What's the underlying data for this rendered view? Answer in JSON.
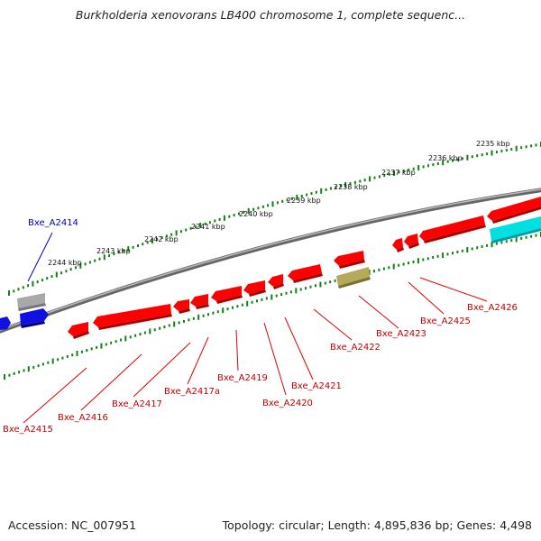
{
  "title": "Burkholderia xenovorans LB400 chromosome 1, complete sequenc...",
  "footer": {
    "accession": "Accession: NC_007951",
    "stats": "Topology: circular; Length: 4,895,836 bp; Genes: 4,498"
  },
  "scale_labels": [
    "2235 kbp",
    "2236 kbp",
    "2237 kbp",
    "2238 kbp",
    "2239 kbp",
    "2240 kbp",
    "2241 kbp",
    "2242 kbp",
    "2243 kbp",
    "2244 kbp"
  ],
  "genes": [
    {
      "label": "Bxe_A2414",
      "color": "#0000bb"
    },
    {
      "label": "Bxe_A2415",
      "color": "#c00000"
    },
    {
      "label": "Bxe_A2416",
      "color": "#c00000"
    },
    {
      "label": "Bxe_A2417",
      "color": "#c00000"
    },
    {
      "label": "Bxe_A2417a",
      "color": "#c00000"
    },
    {
      "label": "Bxe_A2419",
      "color": "#c00000"
    },
    {
      "label": "Bxe_A2420",
      "color": "#c00000"
    },
    {
      "label": "Bxe_A2421",
      "color": "#c00000"
    },
    {
      "label": "Bxe_A2422",
      "color": "#c00000"
    },
    {
      "label": "Bxe_A2423",
      "color": "#c00000"
    },
    {
      "label": "Bxe_A2425",
      "color": "#c00000"
    },
    {
      "label": "Bxe_A2426",
      "color": "#c00000"
    }
  ],
  "colors": {
    "forward_gene": "#ff0000",
    "selected_gene": "#1010e0",
    "grey_feature": "#a8a8a8",
    "olive_feature": "#b5aa5a",
    "cyan_feature": "#00e0e0",
    "backbone": "#888888",
    "tick": "#138013"
  }
}
